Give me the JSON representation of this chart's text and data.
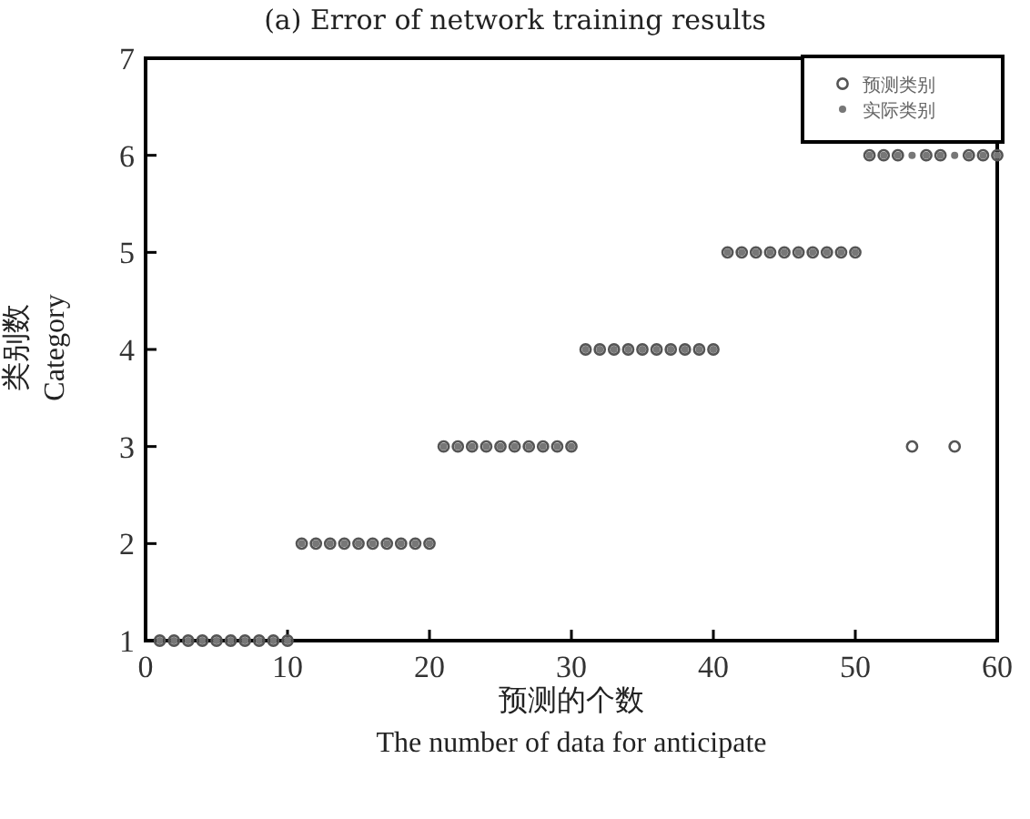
{
  "chart_data": {
    "type": "scatter",
    "title": "(a) Error of network training results",
    "xlabel": "预测的个数\nThe number of data for anticipate",
    "ylabel": "类别数\nCategory",
    "x": [
      1,
      2,
      3,
      4,
      5,
      6,
      7,
      8,
      9,
      10,
      11,
      12,
      13,
      14,
      15,
      16,
      17,
      18,
      19,
      20,
      21,
      22,
      23,
      24,
      25,
      26,
      27,
      28,
      29,
      30,
      31,
      32,
      33,
      34,
      35,
      36,
      37,
      38,
      39,
      40,
      41,
      42,
      43,
      44,
      45,
      46,
      47,
      48,
      49,
      50,
      51,
      52,
      53,
      54,
      55,
      56,
      57,
      58,
      59,
      60
    ],
    "series": [
      {
        "name": "预测类别",
        "color": "#555555",
        "marker": "circle",
        "values": [
          1,
          1,
          1,
          1,
          1,
          1,
          1,
          1,
          1,
          1,
          2,
          2,
          2,
          2,
          2,
          2,
          2,
          2,
          2,
          2,
          3,
          3,
          3,
          3,
          3,
          3,
          3,
          3,
          3,
          3,
          4,
          4,
          4,
          4,
          4,
          4,
          4,
          4,
          4,
          4,
          5,
          5,
          5,
          5,
          5,
          5,
          5,
          5,
          5,
          5,
          6,
          6,
          6,
          3,
          6,
          6,
          3,
          6,
          6,
          6
        ]
      },
      {
        "name": "实际类别",
        "color": "#777777",
        "marker": "dot",
        "values": [
          1,
          1,
          1,
          1,
          1,
          1,
          1,
          1,
          1,
          1,
          2,
          2,
          2,
          2,
          2,
          2,
          2,
          2,
          2,
          2,
          3,
          3,
          3,
          3,
          3,
          3,
          3,
          3,
          3,
          3,
          4,
          4,
          4,
          4,
          4,
          4,
          4,
          4,
          4,
          4,
          5,
          5,
          5,
          5,
          5,
          5,
          5,
          5,
          5,
          5,
          6,
          6,
          6,
          6,
          6,
          6,
          6,
          6,
          6,
          6
        ]
      }
    ],
    "xlim": [
      0,
      60
    ],
    "ylim": [
      1,
      7
    ],
    "xticks": [
      0,
      10,
      20,
      30,
      40,
      50,
      60
    ],
    "yticks": [
      1,
      2,
      3,
      4,
      5,
      6,
      7
    ],
    "grid": false,
    "legend": "top right"
  }
}
